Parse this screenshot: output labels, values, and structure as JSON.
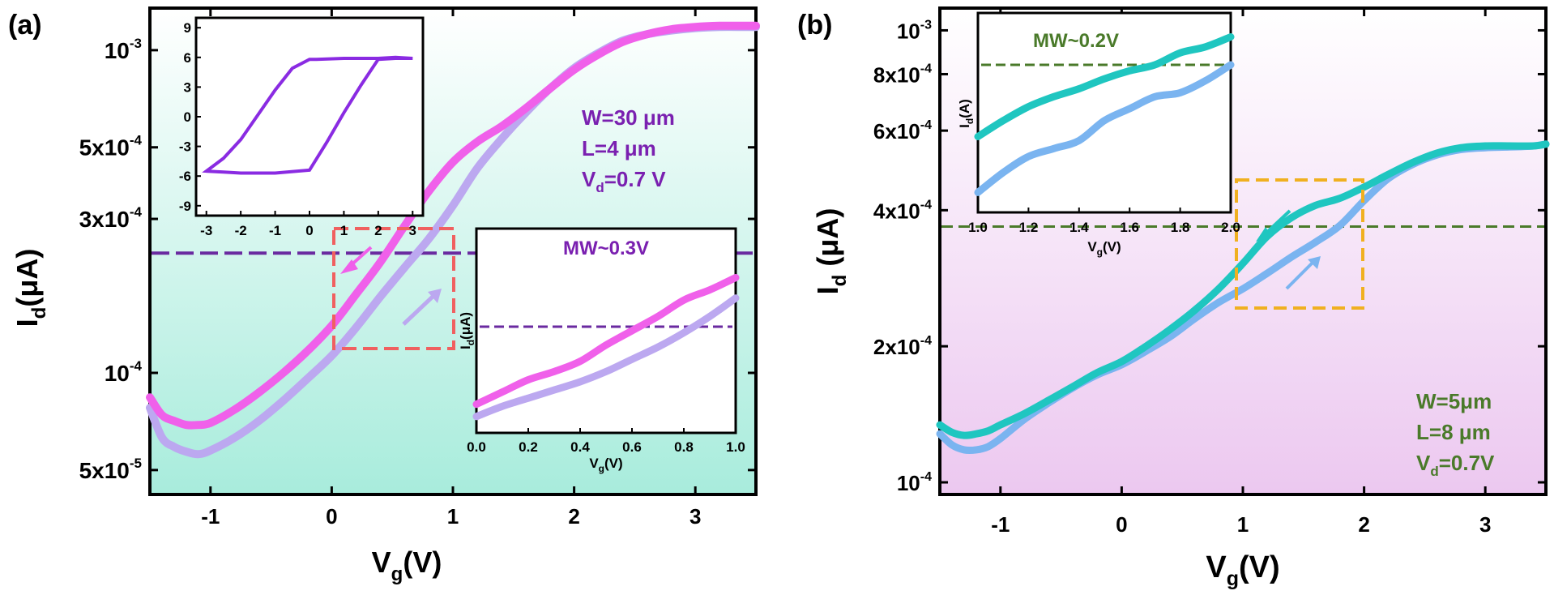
{
  "colors": {
    "axes": "#000000",
    "panel_a_bg_top": "#ffffff",
    "panel_a_bg_bottom": "#a8ecdc",
    "panel_b_bg_top": "#ffffff",
    "panel_b_bg_bottom": "#ecc8f0",
    "magenta": "#f060ea",
    "lavender": "#bca8f0",
    "purple_text": "#7a20b0",
    "purple_line": "#6a2aa0",
    "inset_loop": "#8a2be2",
    "red_box": "#f06060",
    "teal": "#1fc6c0",
    "lightblue": "#7ab4f0",
    "green": "#4a7a2a",
    "gold": "#f0b020"
  },
  "panel_a": {
    "label": "(a)",
    "xlabel": {
      "main": "V",
      "sub": "g",
      "tail": "(V)"
    },
    "ylabel": {
      "main": "I",
      "sub": "d",
      "tail": "(μA)"
    },
    "x_ticks": [
      "-1",
      "0",
      "1",
      "2",
      "3"
    ],
    "y_ticks": [
      {
        "mant": "10",
        "exp": "-3"
      },
      {
        "mant": "5x10",
        "exp": "-4"
      },
      {
        "mant": "3x10",
        "exp": "-4"
      },
      {
        "mant": "10",
        "exp": "-4"
      },
      {
        "mant": "5x10",
        "exp": "-5"
      }
    ],
    "annot": {
      "w": "W=30 μm",
      "l": "L=4 μm",
      "vd": {
        "main": "V",
        "sub": "d",
        "tail": "=0.7 V"
      }
    },
    "inset_loop_ticks_x": [
      "-3",
      "-2",
      "-1",
      "0",
      "1",
      "2",
      "3"
    ],
    "inset_loop_ticks_y": [
      "9",
      "6",
      "3",
      "0",
      "-3",
      "-6",
      "-9"
    ],
    "inset_zoom": {
      "title": "MW~0.3V",
      "xlabel": {
        "main": "V",
        "sub": "g",
        "tail": "(V)"
      },
      "ylabel": {
        "main": "I",
        "sub": "d",
        "tail": "(μA)"
      },
      "x_ticks": [
        "0.0",
        "0.2",
        "0.4",
        "0.6",
        "0.8",
        "1.0"
      ]
    }
  },
  "panel_b": {
    "label": "(b)",
    "xlabel": {
      "main": "V",
      "sub": "g",
      "tail": "(V)"
    },
    "ylabel": {
      "main": "I",
      "sub": "d",
      "tail": " (μA)"
    },
    "x_ticks": [
      "-1",
      "0",
      "1",
      "2",
      "3"
    ],
    "y_ticks": [
      {
        "mant": "10",
        "exp": "-3"
      },
      {
        "mant": "8x10",
        "exp": "-4"
      },
      {
        "mant": "6x10",
        "exp": "-4"
      },
      {
        "mant": "4x10",
        "exp": "-4"
      },
      {
        "mant": "2x10",
        "exp": "-4"
      },
      {
        "mant": "10",
        "exp": "-4"
      }
    ],
    "annot": {
      "w": "W=5μm",
      "l": "L=8 μm",
      "vd": {
        "main": "V",
        "sub": "d",
        "tail": "=0.7V"
      }
    },
    "inset_zoom": {
      "title": "MW~0.2V",
      "xlabel": {
        "main": "V",
        "sub": "g",
        "tail": "(V)"
      },
      "ylabel": {
        "main": "I",
        "sub": "d",
        "tail": "(A)"
      },
      "x_ticks": [
        "1.0",
        "1.2",
        "1.4",
        "1.6",
        "1.8",
        "2.0"
      ]
    }
  },
  "chart_data": [
    {
      "type": "line",
      "panel": "a",
      "xlabel": "Vg(V)",
      "ylabel": "Id(μA)",
      "xlim": [
        -1.5,
        3.5
      ],
      "ylim": [
        4.2e-05,
        0.00135
      ],
      "yscale": "log",
      "series": [
        {
          "x": [
            -1.5,
            -1.4,
            -1.3,
            -1.2,
            -1.1,
            -1.0,
            -0.8,
            -0.6,
            -0.4,
            -0.2,
            0.0,
            0.2,
            0.4,
            0.6,
            0.8,
            1.0,
            1.2,
            1.4,
            1.6,
            1.8,
            2.0,
            2.2,
            2.4,
            2.6,
            2.8,
            3.0,
            3.2,
            3.4,
            3.5
          ],
          "y": [
            8.4e-05,
            7.4e-05,
            7.1e-05,
            6.9e-05,
            6.9e-05,
            7e-05,
            7.7e-05,
            8.7e-05,
            0.0001,
            0.000117,
            0.00014,
            0.000175,
            0.00022,
            0.000285,
            0.000365,
            0.00045,
            0.00052,
            0.00058,
            0.00066,
            0.00076,
            0.00087,
            0.00097,
            0.00106,
            0.00112,
            0.00116,
            0.00118,
            0.00119,
            0.00119,
            0.00119
          ]
        },
        {
          "x": [
            -1.5,
            -1.4,
            -1.3,
            -1.2,
            -1.1,
            -1.0,
            -0.8,
            -0.6,
            -0.4,
            -0.2,
            0.0,
            0.2,
            0.4,
            0.6,
            0.8,
            1.0,
            1.2,
            1.4,
            1.6,
            1.8,
            2.0,
            2.2,
            2.4,
            2.6,
            2.8,
            3.0,
            3.2,
            3.4,
            3.5
          ],
          "y": [
            7.8e-05,
            6.3e-05,
            5.9e-05,
            5.7e-05,
            5.6e-05,
            5.75e-05,
            6.3e-05,
            7.1e-05,
            8.2e-05,
            9.6e-05,
            0.000113,
            0.000138,
            0.000172,
            0.000212,
            0.00026,
            0.00033,
            0.00043,
            0.00053,
            0.00064,
            0.00076,
            0.00088,
            0.00098,
            0.00107,
            0.00112,
            0.00115,
            0.00117,
            0.00118,
            0.00118,
            0.00118
          ]
        }
      ],
      "reference_y": 0.000235,
      "inset_loop": {
        "xlim": [
          -3.3,
          3.3
        ],
        "ylim": [
          -10,
          10
        ],
        "x": [
          -3.0,
          -2.5,
          -2.0,
          -1.5,
          -1.0,
          -0.5,
          0.0,
          0.2,
          1.0,
          2.0,
          2.5,
          3.0,
          2.5,
          2.0,
          1.5,
          1.0,
          0.5,
          0.0,
          -1.0,
          -2.0,
          -2.5,
          -3.0
        ],
        "y": [
          -5.5,
          -4.2,
          -2.3,
          0.2,
          2.7,
          4.9,
          5.8,
          5.8,
          5.9,
          5.9,
          6.0,
          5.9,
          5.9,
          5.8,
          3.2,
          0.4,
          -2.6,
          -5.4,
          -5.7,
          -5.7,
          -5.6,
          -5.5
        ]
      },
      "inset_zoom_series": [
        {
          "x": [
            0.0,
            0.1,
            0.2,
            0.3,
            0.4,
            0.5,
            0.6,
            0.7,
            0.8,
            0.9,
            1.0
          ],
          "y": [
            0.14,
            0.2,
            0.26,
            0.3,
            0.35,
            0.43,
            0.5,
            0.57,
            0.65,
            0.7,
            0.76
          ]
        },
        {
          "x": [
            0.0,
            0.1,
            0.2,
            0.3,
            0.4,
            0.5,
            0.6,
            0.7,
            0.8,
            0.9,
            1.0
          ],
          "y": [
            0.08,
            0.13,
            0.17,
            0.21,
            0.25,
            0.3,
            0.36,
            0.42,
            0.49,
            0.57,
            0.66
          ]
        }
      ],
      "inset_zoom_reference": 0.52
    },
    {
      "type": "line",
      "panel": "b",
      "xlabel": "Vg(V)",
      "ylabel": "Id (μA)",
      "xlim": [
        -1.5,
        3.5
      ],
      "ylim": [
        9.4e-05,
        0.00112
      ],
      "yscale": "log",
      "series": [
        {
          "x": [
            -1.5,
            -1.4,
            -1.3,
            -1.2,
            -1.1,
            -1.0,
            -0.8,
            -0.6,
            -0.4,
            -0.2,
            0.0,
            0.2,
            0.4,
            0.6,
            0.8,
            1.0,
            1.2,
            1.4,
            1.6,
            1.8,
            2.0,
            2.2,
            2.4,
            2.6,
            2.8,
            3.0,
            3.2,
            3.4,
            3.5
          ],
          "y": [
            0.000134,
            0.000129,
            0.000127,
            0.000128,
            0.00013,
            0.000134,
            0.000142,
            0.000152,
            0.000163,
            0.000175,
            0.000185,
            0.0002,
            0.000218,
            0.00024,
            0.000268,
            0.000305,
            0.00035,
            0.000385,
            0.00041,
            0.000425,
            0.00045,
            0.00048,
            0.00051,
            0.000535,
            0.00055,
            0.000555,
            0.000555,
            0.000555,
            0.00056
          ]
        },
        {
          "x": [
            -1.5,
            -1.4,
            -1.3,
            -1.2,
            -1.1,
            -1.0,
            -0.8,
            -0.6,
            -0.4,
            -0.2,
            0.0,
            0.2,
            0.4,
            0.6,
            0.8,
            1.0,
            1.2,
            1.4,
            1.6,
            1.8,
            2.0,
            2.2,
            2.4,
            2.6,
            2.8,
            3.0,
            3.2,
            3.4,
            3.5
          ],
          "y": [
            0.000128,
            0.000121,
            0.000118,
            0.000118,
            0.00012,
            0.000125,
            0.000138,
            0.00015,
            0.000162,
            0.000173,
            0.000182,
            0.000195,
            0.00021,
            0.00023,
            0.00025,
            0.000268,
            0.00029,
            0.000315,
            0.00034,
            0.00037,
            0.00042,
            0.00047,
            0.000505,
            0.00053,
            0.000545,
            0.00055,
            0.000552,
            0.000555,
            0.00056
          ]
        }
      ],
      "reference_y": 0.000368,
      "inset_zoom_series": [
        {
          "x": [
            1.0,
            1.1,
            1.2,
            1.3,
            1.4,
            1.5,
            1.6,
            1.7,
            1.8,
            1.9,
            2.0
          ],
          "y": [
            0.38,
            0.46,
            0.53,
            0.58,
            0.62,
            0.67,
            0.71,
            0.74,
            0.8,
            0.83,
            0.88
          ]
        },
        {
          "x": [
            1.0,
            1.1,
            1.2,
            1.3,
            1.4,
            1.5,
            1.6,
            1.7,
            1.8,
            1.9,
            2.0
          ],
          "y": [
            0.1,
            0.2,
            0.28,
            0.32,
            0.36,
            0.46,
            0.52,
            0.58,
            0.6,
            0.66,
            0.74
          ]
        }
      ],
      "inset_zoom_reference": 0.74
    }
  ]
}
